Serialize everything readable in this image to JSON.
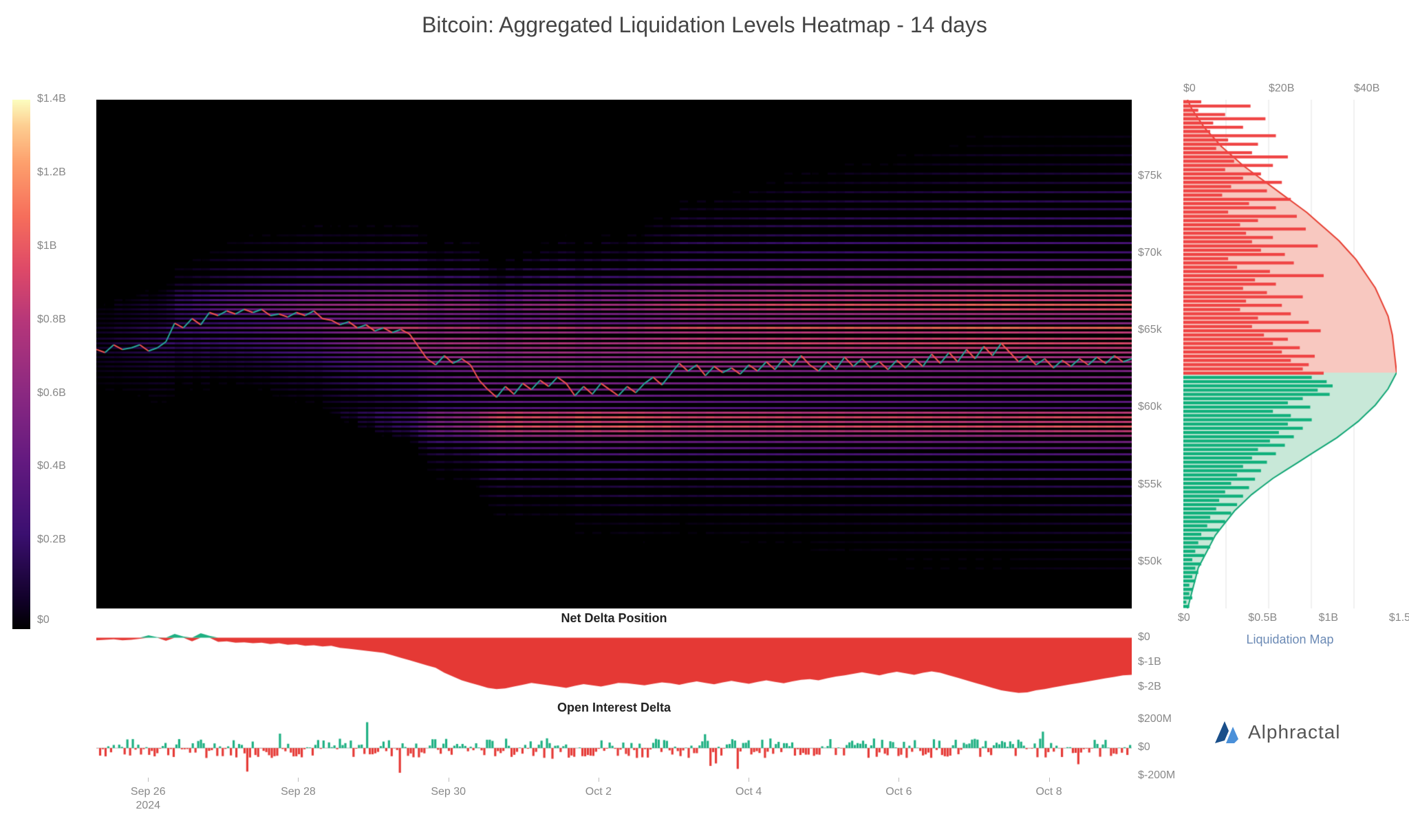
{
  "title": "Bitcoin: Aggregated Liquidation Levels Heatmap - 14 days",
  "title_color": "#555555",
  "title_fontsize": 32,
  "background_color": "#ffffff",
  "colorbar": {
    "gradient_stops": [
      {
        "v": 0.0,
        "color": "#000000"
      },
      {
        "v": 0.05,
        "color": "#0f0025"
      },
      {
        "v": 0.18,
        "color": "#3b0f70"
      },
      {
        "v": 0.32,
        "color": "#641a80"
      },
      {
        "v": 0.45,
        "color": "#8c2981"
      },
      {
        "v": 0.58,
        "color": "#b5367a"
      },
      {
        "v": 0.68,
        "color": "#de4968"
      },
      {
        "v": 0.78,
        "color": "#f66e5b"
      },
      {
        "v": 0.88,
        "color": "#fd9f6c"
      },
      {
        "v": 0.95,
        "color": "#fdcd90"
      },
      {
        "v": 1.0,
        "color": "#fcfdbf"
      }
    ],
    "ticks": [
      "$1.4B",
      "$1.2B",
      "$1B",
      "$0.8B",
      "$0.6B",
      "$0.4B",
      "$0.2B",
      "$0"
    ],
    "tick_positions": [
      0.0,
      0.139,
      0.278,
      0.417,
      0.556,
      0.694,
      0.833,
      0.985
    ],
    "tick_color": "#888888",
    "tick_fontsize": 16
  },
  "heatmap": {
    "type": "heatmap",
    "price_range": [
      47000,
      80000
    ],
    "y_ticks": [
      75000,
      70000,
      65000,
      60000,
      55000,
      50000
    ],
    "y_tick_labels": [
      "$75k",
      "$70k",
      "$65k",
      "$60k",
      "$55k",
      "$50k"
    ],
    "background_color": "#000000",
    "bands": [
      {
        "price": 79500,
        "intensity": 0.04
      },
      {
        "price": 78800,
        "intensity": 0.08
      },
      {
        "price": 78200,
        "intensity": 0.06
      },
      {
        "price": 77600,
        "intensity": 0.12
      },
      {
        "price": 77000,
        "intensity": 0.1
      },
      {
        "price": 76400,
        "intensity": 0.18
      },
      {
        "price": 75800,
        "intensity": 0.16
      },
      {
        "price": 75200,
        "intensity": 0.22
      },
      {
        "price": 74600,
        "intensity": 0.2
      },
      {
        "price": 74000,
        "intensity": 0.26
      },
      {
        "price": 73400,
        "intensity": 0.28
      },
      {
        "price": 72900,
        "intensity": 0.24
      },
      {
        "price": 72300,
        "intensity": 0.3
      },
      {
        "price": 71800,
        "intensity": 0.32
      },
      {
        "price": 71200,
        "intensity": 0.28
      },
      {
        "price": 70700,
        "intensity": 0.34
      },
      {
        "price": 70100,
        "intensity": 0.3
      },
      {
        "price": 69600,
        "intensity": 0.38
      },
      {
        "price": 69000,
        "intensity": 0.42
      },
      {
        "price": 68500,
        "intensity": 0.46
      },
      {
        "price": 68000,
        "intensity": 0.5
      },
      {
        "price": 67600,
        "intensity": 0.68
      },
      {
        "price": 67300,
        "intensity": 0.8
      },
      {
        "price": 67000,
        "intensity": 0.72
      },
      {
        "price": 66700,
        "intensity": 0.9
      },
      {
        "price": 66400,
        "intensity": 0.78
      },
      {
        "price": 66100,
        "intensity": 0.6
      },
      {
        "price": 65800,
        "intensity": 0.55
      },
      {
        "price": 65500,
        "intensity": 0.48
      },
      {
        "price": 65200,
        "intensity": 0.85
      },
      {
        "price": 64900,
        "intensity": 0.65
      },
      {
        "price": 64500,
        "intensity": 0.68
      },
      {
        "price": 64200,
        "intensity": 0.7
      },
      {
        "price": 63900,
        "intensity": 0.62
      },
      {
        "price": 63600,
        "intensity": 0.58
      },
      {
        "price": 63300,
        "intensity": 0.52
      },
      {
        "price": 63000,
        "intensity": 0.48
      },
      {
        "price": 62700,
        "intensity": 0.44
      },
      {
        "price": 62400,
        "intensity": 0.4
      },
      {
        "price": 62000,
        "intensity": 0.42
      },
      {
        "price": 61600,
        "intensity": 0.38
      },
      {
        "price": 61200,
        "intensity": 0.36
      },
      {
        "price": 60800,
        "intensity": 0.34
      },
      {
        "price": 60400,
        "intensity": 0.32
      },
      {
        "price": 60000,
        "intensity": 0.3
      },
      {
        "price": 59700,
        "intensity": 0.7
      },
      {
        "price": 59400,
        "intensity": 0.82
      },
      {
        "price": 59100,
        "intensity": 0.74
      },
      {
        "price": 58800,
        "intensity": 0.88
      },
      {
        "price": 58500,
        "intensity": 0.76
      },
      {
        "price": 58200,
        "intensity": 0.64
      },
      {
        "price": 57800,
        "intensity": 0.48
      },
      {
        "price": 57400,
        "intensity": 0.4
      },
      {
        "price": 57000,
        "intensity": 0.34
      },
      {
        "price": 56500,
        "intensity": 0.28
      },
      {
        "price": 56000,
        "intensity": 0.24
      },
      {
        "price": 55400,
        "intensity": 0.28
      },
      {
        "price": 54900,
        "intensity": 0.2
      },
      {
        "price": 54300,
        "intensity": 0.22
      },
      {
        "price": 53700,
        "intensity": 0.16
      },
      {
        "price": 53100,
        "intensity": 0.18
      },
      {
        "price": 52500,
        "intensity": 0.12
      },
      {
        "price": 51900,
        "intensity": 0.14
      },
      {
        "price": 51300,
        "intensity": 0.1
      },
      {
        "price": 50800,
        "intensity": 0.12
      },
      {
        "price": 50200,
        "intensity": 0.08
      },
      {
        "price": 49600,
        "intensity": 0.1
      },
      {
        "price": 49000,
        "intensity": 0.04
      }
    ],
    "mask_slope": 0.55,
    "price_line": {
      "points": [
        63800,
        63600,
        64100,
        63800,
        63900,
        64100,
        63700,
        63900,
        64300,
        65500,
        65200,
        65800,
        65400,
        66200,
        66000,
        66300,
        66100,
        66400,
        66200,
        66400,
        66000,
        66100,
        65900,
        66200,
        66000,
        66300,
        65800,
        65700,
        65400,
        65600,
        65200,
        65400,
        65000,
        65200,
        64900,
        65100,
        64800,
        64000,
        63200,
        62800,
        63400,
        62900,
        63200,
        62800,
        61800,
        61200,
        60700,
        61400,
        60900,
        61600,
        61200,
        61800,
        61400,
        62000,
        61600,
        60800,
        61400,
        60900,
        61600,
        61200,
        60800,
        61400,
        61000,
        61600,
        62000,
        61500,
        62200,
        62900,
        62400,
        62800,
        62100,
        62700,
        62300,
        62600,
        62200,
        62800,
        62400,
        63000,
        62500,
        63200,
        62700,
        63400,
        62800,
        62400,
        63000,
        62500,
        63300,
        62700,
        63200,
        62600,
        63000,
        62500,
        63100,
        62600,
        63200,
        62700,
        63500,
        62900,
        63600,
        63000,
        63800,
        63200,
        64000,
        63400,
        64200,
        63600,
        63000,
        63400,
        62800,
        63200,
        62600,
        63100,
        62700,
        63200,
        62800,
        63300,
        62900,
        63400,
        63000,
        63200
      ],
      "up_color": "#26a69a",
      "down_color": "#ef5350",
      "line_width": 2
    }
  },
  "liquidation_map": {
    "label": "Liquidation Map",
    "label_color": "#6b8ab5",
    "top_axis_labels": [
      "$0",
      "$20B",
      "$40B"
    ],
    "top_axis_positions": [
      0.0,
      0.4,
      0.8
    ],
    "bottom_axis_labels": [
      "$0",
      "$0.5B",
      "$1B",
      "$1.5B"
    ],
    "bottom_axis_positions": [
      0.0,
      0.33,
      0.66,
      0.99
    ],
    "price_range": [
      47000,
      80000
    ],
    "split_price": 62300,
    "upper_bar_color": "#ef4444",
    "upper_area_color": "#f8c8c0",
    "upper_line_color": "#e63e31",
    "lower_bar_color": "#10b07b",
    "lower_area_color": "#c8e8d8",
    "lower_line_color": "#10a574",
    "grid_color": "#e0e0e0",
    "bars": [
      0.12,
      0.45,
      0.1,
      0.28,
      0.55,
      0.2,
      0.4,
      0.18,
      0.62,
      0.3,
      0.5,
      0.22,
      0.46,
      0.7,
      0.34,
      0.6,
      0.28,
      0.52,
      0.4,
      0.66,
      0.32,
      0.56,
      0.26,
      0.72,
      0.44,
      0.62,
      0.3,
      0.76,
      0.5,
      0.38,
      0.82,
      0.42,
      0.6,
      0.46,
      0.9,
      0.52,
      0.68,
      0.3,
      0.74,
      0.36,
      0.58,
      0.94,
      0.48,
      0.62,
      0.4,
      0.56,
      0.8,
      0.42,
      0.66,
      0.38,
      0.72,
      0.5,
      0.84,
      0.46,
      0.92,
      0.54,
      0.7,
      0.6,
      0.78,
      0.66,
      0.88,
      0.72,
      0.84,
      0.8,
      0.94,
      0.86,
      0.96,
      1.0,
      0.9,
      0.98,
      0.8,
      0.7,
      0.85,
      0.6,
      0.72,
      0.86,
      0.7,
      0.8,
      0.64,
      0.74,
      0.58,
      0.68,
      0.5,
      0.62,
      0.46,
      0.56,
      0.4,
      0.52,
      0.36,
      0.48,
      0.32,
      0.44,
      0.28,
      0.4,
      0.24,
      0.36,
      0.22,
      0.32,
      0.18,
      0.28,
      0.16,
      0.24,
      0.12,
      0.2,
      0.1,
      0.18,
      0.08,
      0.14,
      0.06,
      0.12,
      0.08,
      0.1,
      0.06,
      0.08,
      0.04,
      0.06,
      0.04,
      0.06,
      0.02,
      0.04
    ],
    "cumulative_upper": [
      0.02,
      0.04,
      0.07,
      0.1,
      0.14,
      0.18,
      0.23,
      0.28,
      0.34,
      0.4,
      0.46,
      0.52,
      0.58,
      0.63,
      0.68,
      0.73,
      0.77,
      0.81,
      0.84,
      0.87,
      0.9,
      0.92,
      0.94,
      0.96,
      0.97,
      0.98,
      0.985,
      0.99,
      0.995,
      1.0
    ],
    "cumulative_lower": [
      1.0,
      0.98,
      0.96,
      0.93,
      0.9,
      0.86,
      0.82,
      0.77,
      0.72,
      0.66,
      0.6,
      0.54,
      0.48,
      0.42,
      0.37,
      0.32,
      0.28,
      0.24,
      0.21,
      0.18,
      0.15,
      0.13,
      0.11,
      0.09,
      0.07,
      0.06,
      0.05,
      0.04,
      0.03,
      0.02
    ]
  },
  "net_delta": {
    "title": "Net Delta Position",
    "pos_color": "#1db082",
    "neg_color": "#e53935",
    "y_ticks": [
      "$0",
      "$-1B",
      "$-2B"
    ],
    "y_tick_values": [
      0,
      -1,
      -2
    ],
    "range": [
      -2.4,
      0.4
    ],
    "data": [
      -0.1,
      -0.08,
      -0.06,
      -0.1,
      -0.08,
      -0.04,
      0.1,
      0.02,
      -0.12,
      0.15,
      0.05,
      -0.14,
      0.18,
      0.08,
      -0.16,
      -0.14,
      -0.2,
      -0.18,
      -0.22,
      -0.2,
      -0.25,
      -0.22,
      -0.28,
      -0.26,
      -0.32,
      -0.3,
      -0.35,
      -0.32,
      -0.4,
      -0.44,
      -0.48,
      -0.52,
      -0.56,
      -0.6,
      -0.7,
      -0.8,
      -0.9,
      -1.0,
      -1.1,
      -1.2,
      -1.4,
      -1.55,
      -1.7,
      -1.8,
      -1.9,
      -2.0,
      -2.05,
      -2.02,
      -1.95,
      -1.88,
      -1.8,
      -1.85,
      -1.9,
      -1.95,
      -2.0,
      -1.92,
      -1.85,
      -1.9,
      -1.95,
      -1.88,
      -1.8,
      -1.82,
      -1.86,
      -1.9,
      -1.84,
      -1.78,
      -1.82,
      -1.88,
      -1.8,
      -1.74,
      -1.8,
      -1.86,
      -1.78,
      -1.72,
      -1.78,
      -1.84,
      -1.76,
      -1.7,
      -1.76,
      -1.82,
      -1.74,
      -1.68,
      -1.65,
      -1.7,
      -1.62,
      -1.55,
      -1.5,
      -1.44,
      -1.38,
      -1.44,
      -1.5,
      -1.42,
      -1.36,
      -1.42,
      -1.48,
      -1.4,
      -1.34,
      -1.4,
      -1.5,
      -1.6,
      -1.7,
      -1.8,
      -1.9,
      -2.0,
      -2.1,
      -2.15,
      -2.2,
      -2.18,
      -2.1,
      -2.05,
      -1.98,
      -1.92,
      -1.86,
      -1.8,
      -1.74,
      -1.68,
      -1.62,
      -1.56,
      -1.5,
      -1.48
    ]
  },
  "open_interest": {
    "title": "Open Interest Delta",
    "pos_color": "#1db082",
    "neg_color": "#e53935",
    "y_ticks": [
      "$200M",
      "$0",
      "$-200M"
    ],
    "y_tick_values": [
      200,
      0,
      -200
    ],
    "range": [
      -220,
      220
    ]
  },
  "x_axis": {
    "labels": [
      "Sep 26",
      "Sep 28",
      "Sep 30",
      "Oct 2",
      "Oct 4",
      "Oct 6",
      "Oct 8"
    ],
    "positions": [
      0.05,
      0.195,
      0.34,
      0.485,
      0.63,
      0.775,
      0.92
    ],
    "year_label": "2024",
    "year_position": 0.05,
    "tick_color": "#888888"
  },
  "logo": {
    "text": "Alphractal",
    "text_color": "#666666",
    "icon_color_1": "#1a4f8a",
    "icon_color_2": "#4a90d9"
  }
}
